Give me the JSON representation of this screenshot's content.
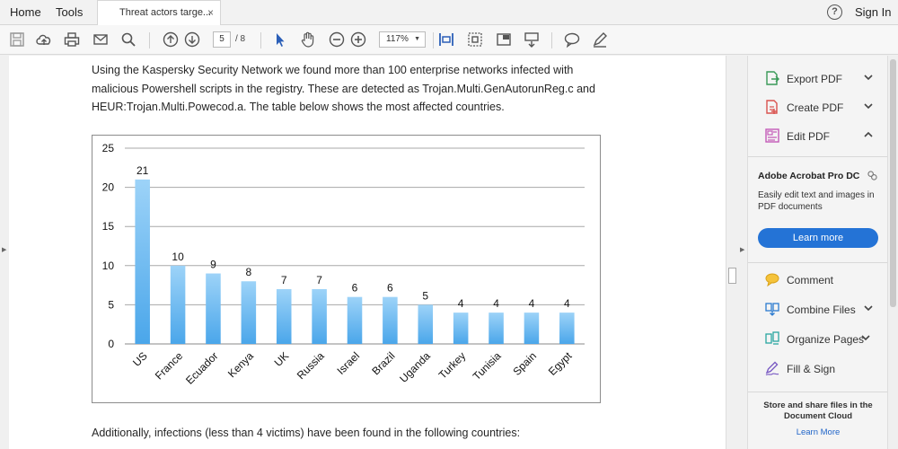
{
  "topbar": {
    "home": "Home",
    "tools": "Tools",
    "tab_title": "Threat actors targe...",
    "tab_close": "×",
    "help": "?",
    "sign_in": "Sign In"
  },
  "toolbar": {
    "current_page": "5",
    "page_total": "/ 8",
    "zoom": "117%",
    "zoom_caret": "▼"
  },
  "document": {
    "paragraph1_line1": "Using the Kaspersky Security Network we found more than 100 enterprise networks infected with",
    "paragraph1_line2": "malicious Powershell scripts in the registry. These are detected as Trojan.Multi.GenAutorunReg.c and",
    "paragraph1_line3": "HEUR:Trojan.Multi.Powecod.a. The table below shows the most affected countries.",
    "paragraph2": "Additionally, infections (less than 4 victims) have been found in the following countries:"
  },
  "chart_data": {
    "type": "bar",
    "categories": [
      "US",
      "France",
      "Ecuador",
      "Kenya",
      "UK",
      "Russia",
      "Israel",
      "Brazil",
      "Uganda",
      "Turkey",
      "Tunisia",
      "Spain",
      "Egypt"
    ],
    "values": [
      21,
      10,
      9,
      8,
      7,
      7,
      6,
      6,
      5,
      4,
      4,
      4,
      4
    ],
    "yticks": [
      0,
      5,
      10,
      15,
      20,
      25
    ],
    "ylim": [
      0,
      25
    ],
    "grid": true,
    "legend": "none",
    "bar_color_top": "#9dd3f8",
    "bar_color_bottom": "#4aa6ea"
  },
  "right_panel": {
    "tools": [
      {
        "label": "Export PDF",
        "icon": "export-pdf-icon",
        "chevron": "down"
      },
      {
        "label": "Create PDF",
        "icon": "create-pdf-icon",
        "chevron": "down"
      },
      {
        "label": "Edit PDF",
        "icon": "edit-pdf-icon",
        "chevron": "up"
      }
    ],
    "promo_title": "Adobe Acrobat Pro DC",
    "promo_desc": "Easily edit text and images in PDF documents",
    "learn_more_button": "Learn more",
    "tools2": [
      {
        "label": "Comment",
        "icon": "comment-icon",
        "chevron": ""
      },
      {
        "label": "Combine Files",
        "icon": "combine-files-icon",
        "chevron": "down"
      },
      {
        "label": "Organize Pages",
        "icon": "organize-pages-icon",
        "chevron": "down"
      },
      {
        "label": "Fill & Sign",
        "icon": "fill-sign-icon",
        "chevron": ""
      }
    ],
    "store_text": "Store and share files in the Document Cloud",
    "store_link": "Learn More"
  },
  "colors": {
    "accent_blue": "#2473d6",
    "link_blue": "#1f64c8"
  }
}
